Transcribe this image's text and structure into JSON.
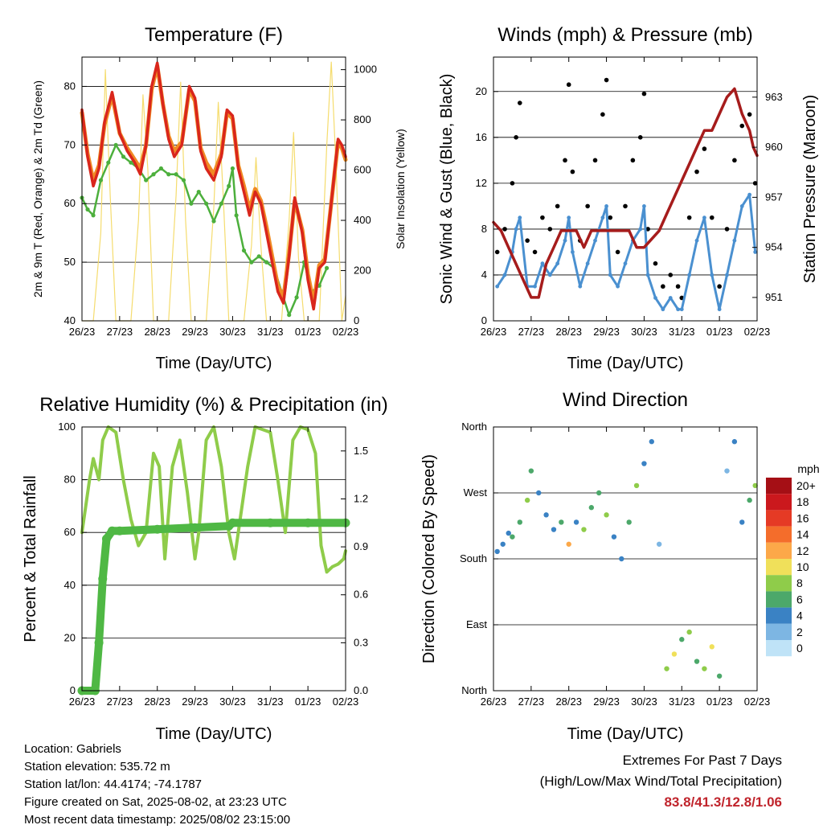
{
  "info": {
    "location": "Location: Gabriels",
    "elevation": "Station elevation: 535.72 m",
    "latlon": "Station lat/lon: 44.4174; -74.1787",
    "created": "Figure created on Sat, 2025-08-02, at 23:23 UTC",
    "recent": "Most recent data timestamp: 2025/08/02 23:15:00"
  },
  "extremes": {
    "title": "Extremes For Past 7 Days",
    "subtitle": "(High/Low/Max Wind/Total Precipitation)",
    "values": "83.8/41.3/12.8/1.06"
  },
  "colors": {
    "temp_red": "#d9261c",
    "temp_orange": "#f08a24",
    "dewpoint_green": "#4caf3c",
    "insolation_yellow": "#f5dc6e",
    "wind_blue": "#4a90d0",
    "gust_black": "#000000",
    "pressure_maroon": "#a61c1c",
    "rh_green": "#8fcc4a",
    "precip_green": "#4fb844"
  },
  "chart_data": [
    {
      "id": "temperature",
      "type": "line",
      "title": "Temperature (F)",
      "xlabel": "Time (Day/UTC)",
      "ylabel": "2m & 9m T (Red, Orange) & 2m Td (Green)",
      "y2label": "Solar Insolation (Yellow)",
      "x_ticks": [
        "26/23",
        "27/23",
        "28/23",
        "29/23",
        "30/23",
        "31/23",
        "01/23",
        "02/23"
      ],
      "xlim": [
        0,
        7
      ],
      "ylim": [
        40,
        85
      ],
      "y_ticks": [
        40,
        50,
        60,
        70,
        80
      ],
      "y2lim": [
        0,
        1050
      ],
      "y2_ticks": [
        0,
        200,
        400,
        600,
        800,
        1000
      ],
      "grid": true,
      "series": [
        {
          "name": "2m T",
          "axis": "left",
          "x": [
            0,
            0.15,
            0.3,
            0.45,
            0.6,
            0.8,
            1.0,
            1.2,
            1.4,
            1.55,
            1.7,
            1.85,
            2.0,
            2.15,
            2.3,
            2.45,
            2.65,
            2.85,
            3.0,
            3.15,
            3.3,
            3.5,
            3.7,
            3.85,
            4.0,
            4.15,
            4.3,
            4.45,
            4.6,
            4.75,
            4.9,
            5.05,
            5.2,
            5.35,
            5.5,
            5.65,
            5.85,
            6.0,
            6.15,
            6.3,
            6.45,
            6.6,
            6.8,
            6.9,
            7.0
          ],
          "y": [
            76,
            68,
            63,
            66,
            74,
            79,
            72,
            69,
            67,
            65,
            70,
            80,
            84,
            77,
            71,
            68,
            70,
            80,
            78,
            69,
            66,
            64,
            68,
            76,
            75,
            66,
            62,
            58,
            62,
            60,
            55,
            50,
            45,
            43,
            51,
            61,
            55,
            47,
            42,
            49,
            50,
            59,
            71,
            70,
            68
          ]
        },
        {
          "name": "9m T",
          "axis": "left",
          "x": [
            0,
            0.15,
            0.3,
            0.45,
            0.6,
            0.8,
            1.0,
            1.2,
            1.4,
            1.55,
            1.7,
            1.85,
            2.0,
            2.15,
            2.3,
            2.45,
            2.65,
            2.85,
            3.0,
            3.15,
            3.3,
            3.5,
            3.7,
            3.85,
            4.0,
            4.15,
            4.3,
            4.45,
            4.6,
            4.75,
            4.9,
            5.05,
            5.2,
            5.35,
            5.5,
            5.65,
            5.85,
            6.0,
            6.15,
            6.3,
            6.45,
            6.6,
            6.8,
            6.9,
            7.0
          ],
          "y": [
            75.5,
            68.5,
            64,
            66.5,
            73.5,
            78.5,
            72,
            69.5,
            67.5,
            66,
            70,
            79.5,
            83.5,
            77,
            71.5,
            69,
            70.5,
            79.5,
            77.5,
            69.5,
            67,
            65,
            68.5,
            75.5,
            74.5,
            66.5,
            63,
            59,
            62.5,
            60.5,
            56,
            51,
            46,
            44,
            51.5,
            60.5,
            55.5,
            48,
            43,
            49.5,
            50.5,
            59,
            70.5,
            69.5,
            67.5
          ]
        },
        {
          "name": "2m Td",
          "axis": "left",
          "x": [
            0,
            0.15,
            0.3,
            0.5,
            0.7,
            0.9,
            1.1,
            1.3,
            1.5,
            1.7,
            1.9,
            2.1,
            2.3,
            2.5,
            2.7,
            2.9,
            3.1,
            3.3,
            3.5,
            3.7,
            3.9,
            4.0,
            4.1,
            4.3,
            4.5,
            4.7,
            4.9,
            5.1,
            5.3,
            5.5,
            5.7,
            5.9,
            6.1,
            6.3,
            6.5
          ],
          "y": [
            61,
            59,
            58,
            64,
            67,
            70,
            68,
            67,
            66,
            64,
            65,
            66,
            65,
            65,
            64,
            60,
            62,
            60,
            57,
            60,
            63,
            66,
            58,
            52,
            50,
            51,
            50,
            49,
            45,
            41,
            44,
            50,
            45,
            46,
            49
          ]
        },
        {
          "name": "Solar Insolation",
          "axis": "right",
          "x": [
            0,
            0.3,
            0.5,
            0.62,
            0.75,
            0.9,
            1.3,
            1.5,
            1.62,
            1.75,
            1.9,
            2.3,
            2.5,
            2.62,
            2.75,
            2.9,
            3.3,
            3.5,
            3.62,
            3.75,
            3.9,
            4.3,
            4.5,
            4.62,
            4.75,
            4.9,
            5.3,
            5.5,
            5.62,
            5.75,
            5.9,
            6.3,
            6.5,
            6.62,
            6.75,
            6.9,
            7.0
          ],
          "y": [
            0,
            0,
            350,
            1000,
            500,
            0,
            0,
            400,
            900,
            600,
            0,
            0,
            500,
            950,
            400,
            0,
            0,
            450,
            870,
            500,
            0,
            0,
            300,
            650,
            300,
            0,
            0,
            400,
            750,
            250,
            0,
            0,
            700,
            1030,
            600,
            0,
            100
          ]
        }
      ]
    },
    {
      "id": "winds",
      "type": "scatter",
      "title": "Winds (mph) & Pressure (mb)",
      "xlabel": "Time (Day/UTC)",
      "ylabel": "Sonic Wind & Gust (Blue, Black)",
      "y2label": "Station Pressure (Maroon)",
      "x_ticks": [
        "26/23",
        "27/23",
        "28/23",
        "29/23",
        "30/23",
        "31/23",
        "01/23",
        "02/23"
      ],
      "xlim": [
        0,
        7
      ],
      "ylim": [
        0,
        23
      ],
      "y_ticks": [
        0,
        4,
        8,
        12,
        16,
        20
      ],
      "y2lim": [
        949.6,
        965.4
      ],
      "y2_ticks": [
        951,
        954,
        957,
        960,
        963
      ],
      "grid": true,
      "series": [
        {
          "name": "Gust",
          "axis": "left",
          "x": [
            0.1,
            0.3,
            0.5,
            0.6,
            0.7,
            0.9,
            1.1,
            1.3,
            1.5,
            1.7,
            1.9,
            2.0,
            2.1,
            2.3,
            2.5,
            2.7,
            2.9,
            3.0,
            3.1,
            3.3,
            3.5,
            3.7,
            3.9,
            4.0,
            4.1,
            4.3,
            4.5,
            4.7,
            4.9,
            5.0,
            5.2,
            5.4,
            5.6,
            5.8,
            6.0,
            6.2,
            6.4,
            6.6,
            6.8,
            6.95
          ],
          "y": [
            6,
            8,
            12,
            16,
            19,
            7,
            6,
            9,
            8,
            10,
            14,
            20.6,
            13,
            7,
            10,
            14,
            18,
            21,
            9,
            6,
            10,
            14,
            16,
            19.8,
            8,
            5,
            3,
            4,
            3,
            2,
            9,
            13,
            15,
            9,
            3,
            8,
            14,
            17,
            18,
            12
          ]
        },
        {
          "name": "Sonic Wind",
          "axis": "left",
          "x": [
            0.1,
            0.3,
            0.5,
            0.6,
            0.7,
            0.9,
            1.1,
            1.3,
            1.5,
            1.7,
            1.9,
            2.0,
            2.1,
            2.3,
            2.5,
            2.7,
            2.9,
            3.0,
            3.1,
            3.3,
            3.5,
            3.7,
            3.9,
            4.0,
            4.1,
            4.3,
            4.5,
            4.7,
            4.9,
            5.0,
            5.2,
            5.4,
            5.6,
            5.8,
            6.0,
            6.2,
            6.4,
            6.6,
            6.8,
            6.95
          ],
          "y": [
            3,
            4,
            6,
            8,
            9,
            3,
            3,
            5,
            4,
            5,
            7,
            9,
            6,
            3,
            5,
            7,
            9,
            10,
            4,
            3,
            5,
            7,
            8,
            10,
            4,
            2,
            1,
            2,
            1,
            1,
            4,
            7,
            9,
            4,
            1,
            4,
            7,
            10,
            11,
            6
          ]
        },
        {
          "name": "Station Pressure",
          "axis": "right",
          "x": [
            0,
            0.2,
            0.4,
            0.6,
            0.8,
            1.0,
            1.2,
            1.4,
            1.6,
            1.8,
            2.0,
            2.2,
            2.4,
            2.6,
            2.8,
            3.0,
            3.2,
            3.4,
            3.6,
            3.8,
            4.0,
            4.2,
            4.4,
            4.6,
            4.8,
            5.0,
            5.2,
            5.4,
            5.6,
            5.8,
            6.0,
            6.2,
            6.4,
            6.6,
            6.8,
            6.9,
            7.0
          ],
          "y": [
            955.5,
            955,
            954,
            953,
            952,
            951,
            951,
            953,
            954,
            955,
            955,
            955,
            954,
            955,
            955,
            955,
            955,
            955,
            955,
            954,
            954,
            954.5,
            955,
            956,
            957,
            958,
            959,
            960,
            961,
            961,
            962,
            963,
            963.5,
            962,
            961,
            960,
            959.5
          ]
        }
      ]
    },
    {
      "id": "humidity",
      "type": "line",
      "title": "Relative Humidity (%) & Precipitation (in)",
      "xlabel": "Time (Day/UTC)",
      "ylabel": "Percent & Total Rainfall",
      "x_ticks": [
        "26/23",
        "27/23",
        "28/23",
        "29/23",
        "30/23",
        "31/23",
        "01/23",
        "02/23"
      ],
      "xlim": [
        0,
        7
      ],
      "ylim": [
        0,
        100
      ],
      "y_ticks": [
        0,
        20,
        40,
        60,
        80,
        100
      ],
      "y2lim": [
        0,
        1.65
      ],
      "y2_ticks": [
        "0.0",
        "0.3",
        "0.6",
        "0.9",
        "1.2",
        "1.5"
      ],
      "grid": true,
      "series": [
        {
          "name": "Relative Humidity",
          "axis": "left",
          "x": [
            0,
            0.1,
            0.2,
            0.3,
            0.45,
            0.55,
            0.7,
            0.9,
            1.1,
            1.3,
            1.5,
            1.7,
            1.9,
            2.05,
            2.2,
            2.4,
            2.6,
            2.8,
            3.0,
            3.1,
            3.3,
            3.5,
            3.7,
            3.9,
            4.05,
            4.2,
            4.4,
            4.6,
            4.8,
            5.0,
            5.2,
            5.4,
            5.6,
            5.8,
            6.0,
            6.2,
            6.35,
            6.5,
            6.65,
            6.8,
            6.95,
            7.0
          ],
          "y": [
            60,
            70,
            80,
            88,
            80,
            95,
            100,
            98,
            80,
            65,
            55,
            60,
            90,
            85,
            50,
            85,
            95,
            75,
            50,
            60,
            95,
            100,
            85,
            60,
            50,
            65,
            85,
            100,
            99,
            98,
            80,
            60,
            95,
            100,
            99,
            90,
            55,
            45,
            47,
            48,
            50,
            53
          ]
        },
        {
          "name": "Total Precipitation",
          "axis": "right",
          "x": [
            0,
            0.35,
            0.45,
            0.55,
            0.65,
            0.8,
            1.0,
            2.0,
            2.9,
            3.0,
            3.9,
            4.0,
            5.0,
            6.0,
            7.0
          ],
          "y": [
            0,
            0,
            0.3,
            0.7,
            0.95,
            1.0,
            1.0,
            1.01,
            1.02,
            1.02,
            1.03,
            1.05,
            1.05,
            1.05,
            1.05
          ]
        }
      ]
    },
    {
      "id": "direction",
      "type": "scatter",
      "title": "Wind Direction",
      "xlabel": "Time (Day/UTC)",
      "ylabel": "Direction (Colored By Speed)",
      "x_ticks": [
        "26/23",
        "27/23",
        "28/23",
        "29/23",
        "30/23",
        "31/23",
        "01/23",
        "02/23"
      ],
      "xlim": [
        0,
        7
      ],
      "ylim": [
        0,
        360
      ],
      "y_tick_labels": [
        "North",
        "East",
        "South",
        "West",
        "North"
      ],
      "y_ticks": [
        0,
        90,
        180,
        270,
        360
      ],
      "grid": true,
      "legend": {
        "title": "mph",
        "position": "right",
        "labels": [
          "20+",
          "18",
          "16",
          "14",
          "12",
          "10",
          "8",
          "6",
          "4",
          "2",
          "0"
        ],
        "colors": [
          "#a50f15",
          "#cb181d",
          "#e53a25",
          "#f46d2b",
          "#fca849",
          "#f0e05a",
          "#8fcc4a",
          "#4ca86a",
          "#3a82c4",
          "#7db6e3",
          "#bfe3f7"
        ]
      },
      "series": [
        {
          "name": "Direction",
          "x": [
            0.1,
            0.25,
            0.4,
            0.5,
            0.7,
            0.9,
            1.0,
            1.2,
            1.4,
            1.6,
            1.8,
            2.0,
            2.2,
            2.4,
            2.6,
            2.8,
            3.0,
            3.2,
            3.4,
            3.6,
            3.8,
            4.0,
            4.2,
            4.4,
            4.6,
            4.8,
            5.0,
            5.2,
            5.4,
            5.6,
            5.8,
            6.0,
            6.2,
            6.4,
            6.6,
            6.8,
            6.95
          ],
          "y": [
            190,
            200,
            215,
            210,
            230,
            260,
            300,
            270,
            240,
            220,
            230,
            200,
            230,
            220,
            250,
            270,
            240,
            210,
            180,
            230,
            280,
            310,
            340,
            200,
            30,
            50,
            70,
            80,
            40,
            30,
            60,
            20,
            300,
            340,
            230,
            260,
            280
          ],
          "speed": [
            3,
            4,
            4,
            5,
            6,
            7,
            6,
            3,
            4,
            3,
            5,
            12,
            4,
            8,
            5,
            6,
            7,
            3,
            4,
            5,
            7,
            4,
            3,
            2,
            8,
            9,
            6,
            7,
            5,
            8,
            10,
            6,
            2,
            3,
            4,
            5,
            8
          ]
        }
      ]
    }
  ]
}
